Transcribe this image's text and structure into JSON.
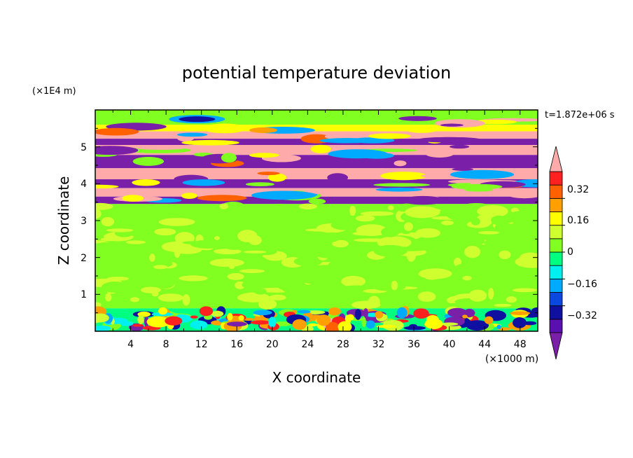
{
  "chart_data": {
    "type": "heatmap",
    "title": "potential temperature deviation",
    "xlabel": "X coordinate",
    "ylabel": "Z coordinate",
    "x_unit": "(×1000 m)",
    "y_unit": "(×1E4 m)",
    "time_label": "t=1.872e+06 s",
    "xlim": [
      0,
      50
    ],
    "ylim": [
      0,
      6
    ],
    "x_ticks": [
      "4",
      "8",
      "12",
      "16",
      "20",
      "24",
      "28",
      "32",
      "36",
      "40",
      "44",
      "48"
    ],
    "y_ticks": [
      "1",
      "2",
      "3",
      "4",
      "5"
    ],
    "colorbar": {
      "levels": [
        -0.48,
        -0.4,
        -0.32,
        -0.24,
        -0.16,
        -0.08,
        0,
        0.08,
        0.16,
        0.24,
        0.32,
        0.4,
        0.48
      ],
      "colors": [
        "#7a1fa8",
        "#5a10b0",
        "#1010a0",
        "#0a48e0",
        "#00aaff",
        "#00f0f0",
        "#00ff80",
        "#80ff20",
        "#d0ff30",
        "#ffff00",
        "#ffa000",
        "#ff6000",
        "#ff2020",
        "#ffaaaa"
      ],
      "tick_labels": [
        "0.32",
        "0.16",
        "0",
        "−0.16",
        "−0.32"
      ],
      "tick_values": [
        0.32,
        0.16,
        0,
        -0.16,
        -0.32
      ]
    },
    "bands": [
      {
        "z0": 5.6,
        "z1": 6.0,
        "value": 0.02
      },
      {
        "z0": 5.42,
        "z1": 5.6,
        "value": 0.2
      },
      {
        "z0": 5.22,
        "z1": 5.42,
        "value": 0.5
      },
      {
        "z0": 5.05,
        "z1": 5.22,
        "value": -0.5
      },
      {
        "z0": 4.78,
        "z1": 5.05,
        "value": 0.5
      },
      {
        "z0": 4.42,
        "z1": 4.78,
        "value": -0.5
      },
      {
        "z0": 4.12,
        "z1": 4.42,
        "value": 0.5
      },
      {
        "z0": 3.88,
        "z1": 4.12,
        "value": -0.5
      },
      {
        "z0": 3.65,
        "z1": 3.88,
        "value": 0.5
      },
      {
        "z0": 3.45,
        "z1": 3.65,
        "value": -0.5
      },
      {
        "z0": 0.62,
        "z1": 3.45,
        "value": 0.03
      },
      {
        "z0": 0.0,
        "z1": 0.62,
        "value": -0.05
      }
    ]
  }
}
